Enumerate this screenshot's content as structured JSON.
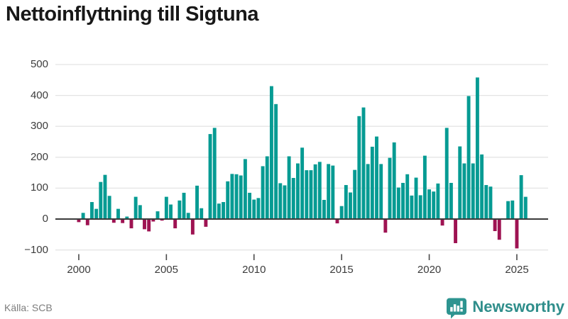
{
  "header": {
    "title": "Nettoinflyttning till Sigtuna"
  },
  "chart_data": {
    "type": "bar",
    "title": "Nettoinflyttning till Sigtuna",
    "x_period": "quarterly",
    "categories": [
      "2000Q1",
      "2000Q2",
      "2000Q3",
      "2000Q4",
      "2001Q1",
      "2001Q2",
      "2001Q3",
      "2001Q4",
      "2002Q1",
      "2002Q2",
      "2002Q3",
      "2002Q4",
      "2003Q1",
      "2003Q2",
      "2003Q3",
      "2003Q4",
      "2004Q1",
      "2004Q2",
      "2004Q3",
      "2004Q4",
      "2005Q1",
      "2005Q2",
      "2005Q3",
      "2005Q4",
      "2006Q1",
      "2006Q2",
      "2006Q3",
      "2006Q4",
      "2007Q1",
      "2007Q2",
      "2007Q3",
      "2007Q4",
      "2008Q1",
      "2008Q2",
      "2008Q3",
      "2008Q4",
      "2009Q1",
      "2009Q2",
      "2009Q3",
      "2009Q4",
      "2010Q1",
      "2010Q2",
      "2010Q3",
      "2010Q4",
      "2011Q1",
      "2011Q2",
      "2011Q3",
      "2011Q4",
      "2012Q1",
      "2012Q2",
      "2012Q3",
      "2012Q4",
      "2013Q1",
      "2013Q2",
      "2013Q3",
      "2013Q4",
      "2014Q1",
      "2014Q2",
      "2014Q3",
      "2014Q4",
      "2015Q1",
      "2015Q2",
      "2015Q3",
      "2015Q4",
      "2016Q1",
      "2016Q2",
      "2016Q3",
      "2016Q4",
      "2017Q1",
      "2017Q2",
      "2017Q3",
      "2017Q4",
      "2018Q1",
      "2018Q2",
      "2018Q3",
      "2018Q4",
      "2019Q1",
      "2019Q2",
      "2019Q3",
      "2019Q4",
      "2020Q1",
      "2020Q2",
      "2020Q3",
      "2020Q4",
      "2021Q1",
      "2021Q2",
      "2021Q3",
      "2021Q4",
      "2022Q1",
      "2022Q2",
      "2022Q3",
      "2022Q4",
      "2023Q1",
      "2023Q2",
      "2023Q3",
      "2023Q4",
      "2024Q1",
      "2024Q2",
      "2024Q3",
      "2024Q4",
      "2025Q1",
      "2025Q2",
      "2025Q3"
    ],
    "values": [
      -10,
      20,
      -20,
      55,
      33,
      120,
      143,
      75,
      -12,
      33,
      -13,
      8,
      -30,
      72,
      45,
      -33,
      -40,
      -8,
      25,
      -5,
      72,
      47,
      -30,
      60,
      85,
      20,
      -50,
      108,
      35,
      -25,
      275,
      295,
      50,
      55,
      122,
      146,
      145,
      141,
      194,
      85,
      63,
      68,
      171,
      203,
      430,
      372,
      116,
      109,
      203,
      133,
      180,
      231,
      158,
      158,
      177,
      185,
      62,
      178,
      173,
      -14,
      42,
      110,
      86,
      159,
      333,
      361,
      178,
      234,
      267,
      178,
      -44,
      198,
      248,
      102,
      117,
      145,
      76,
      134,
      77,
      205,
      96,
      89,
      115,
      -21,
      295,
      117,
      -78,
      235,
      180,
      398,
      180,
      458,
      209,
      110,
      105,
      -39,
      -67,
      0,
      58,
      60,
      -95,
      142,
      72
    ],
    "yticks": [
      500,
      400,
      300,
      200,
      100,
      0,
      -100
    ],
    "xticks": [
      2000,
      2005,
      2010,
      2015,
      2020,
      2025
    ],
    "ylim": [
      -100,
      500
    ],
    "grid": true,
    "legend": false,
    "colors": {
      "positive": "#069b93",
      "negative": "#9e1352"
    }
  },
  "axes": {
    "y_labels": [
      "500",
      "400",
      "300",
      "200",
      "100",
      "0",
      "−100"
    ],
    "x_labels": [
      "2000",
      "2005",
      "2010",
      "2015",
      "2020",
      "2025"
    ]
  },
  "footer": {
    "source": "Källa: SCB",
    "brand": "Newsworthy",
    "logo_icon": "newsworthy-speech-bubble-bar-chart-icon",
    "brand_color": "#2f8e8b"
  }
}
